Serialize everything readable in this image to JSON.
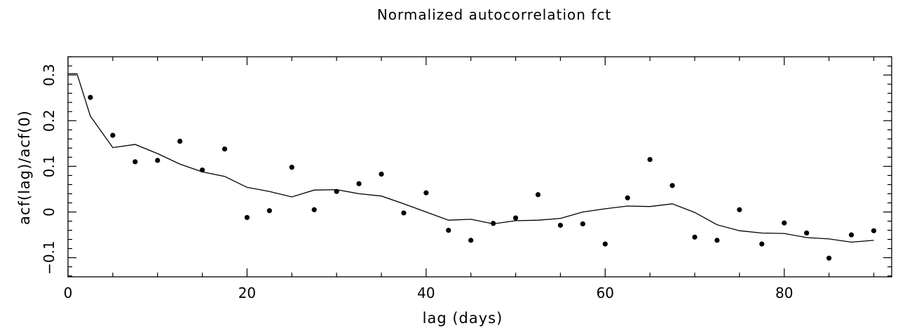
{
  "chart_data": {
    "type": "scatter",
    "title": "Normalized autocorrelation fct",
    "xlabel": "lag  (days)",
    "ylabel": "acf(lag)/acf(0)",
    "xlim": [
      0,
      92
    ],
    "ylim": [
      -0.142,
      0.34
    ],
    "x_ticks": [
      0,
      20,
      40,
      60,
      80
    ],
    "x_tick_labels": [
      "0",
      "20",
      "40",
      "60",
      "80"
    ],
    "y_ticks": [
      -0.1,
      0,
      0.1,
      0.2,
      0.3
    ],
    "y_tick_labels": [
      "−0.1",
      "0",
      "0.1",
      "0.2",
      "0.3"
    ],
    "grid": false,
    "series": [
      {
        "style": "points",
        "x": [
          2.5,
          5,
          7.5,
          10,
          12.5,
          15,
          17.5,
          20,
          22.5,
          25,
          27.5,
          30,
          32.5,
          35,
          37.5,
          40,
          42.5,
          45,
          47.5,
          50,
          52.5,
          55,
          57.5,
          60,
          62.5,
          65,
          67.5,
          70,
          72.5,
          75,
          77.5,
          80,
          82.5,
          85,
          87.5,
          90
        ],
        "y": [
          0.251,
          0.168,
          0.11,
          0.113,
          0.155,
          0.092,
          0.138,
          -0.012,
          0.003,
          0.098,
          0.005,
          0.045,
          0.062,
          0.083,
          -0.002,
          0.042,
          -0.04,
          -0.062,
          -0.025,
          -0.013,
          0.038,
          -0.029,
          -0.026,
          -0.07,
          0.031,
          0.115,
          0.058,
          -0.055,
          -0.062,
          0.005,
          -0.07,
          -0.024,
          -0.046,
          -0.101,
          -0.05,
          -0.041
        ]
      },
      {
        "style": "line",
        "x": [
          0,
          1,
          2.5,
          5,
          7.5,
          10,
          12.5,
          15,
          17.5,
          20,
          22.5,
          25,
          27.5,
          30,
          32.5,
          35,
          37.5,
          40,
          42.5,
          45,
          47.5,
          50,
          52.5,
          55,
          57.5,
          60,
          62.5,
          65,
          67.5,
          70,
          72.5,
          75,
          77.5,
          80,
          82.5,
          85,
          87.5,
          90
        ],
        "y": [
          0.303,
          0.303,
          0.21,
          0.141,
          0.148,
          0.128,
          0.105,
          0.088,
          0.078,
          0.054,
          0.045,
          0.033,
          0.048,
          0.049,
          0.04,
          0.035,
          0.018,
          0.0,
          -0.018,
          -0.016,
          -0.026,
          -0.019,
          -0.018,
          -0.014,
          0.0,
          0.007,
          0.013,
          0.012,
          0.018,
          -0.001,
          -0.028,
          -0.041,
          -0.046,
          -0.047,
          -0.056,
          -0.059,
          -0.066,
          -0.062
        ]
      }
    ]
  }
}
